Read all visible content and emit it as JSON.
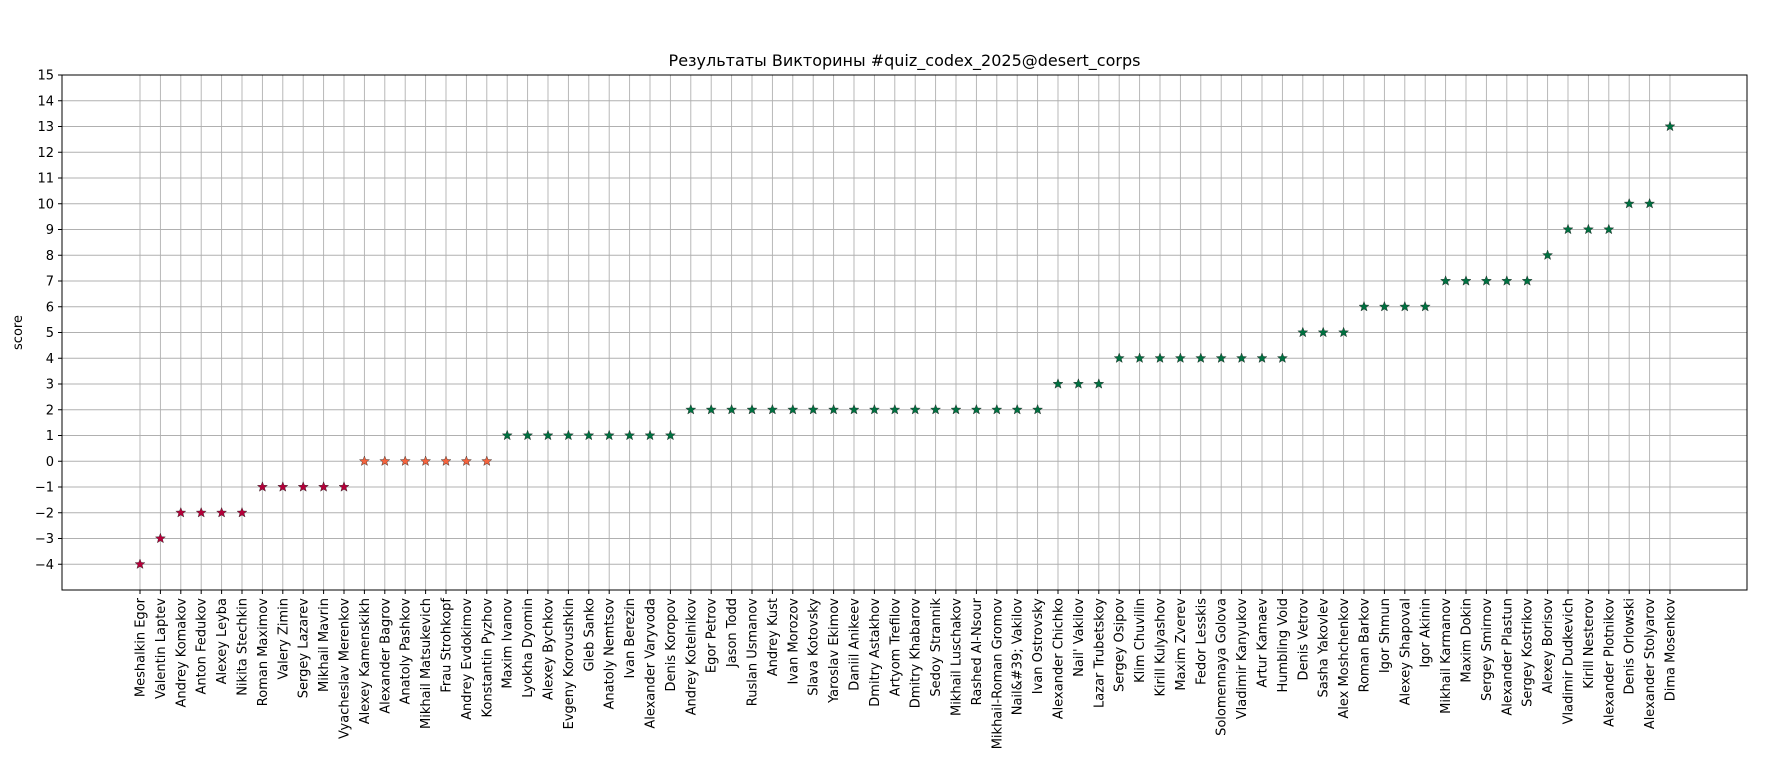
{
  "chart_data": {
    "type": "scatter",
    "marker": "star",
    "title": "Результаты Викторины #quiz_codex_2025@desert_corps",
    "xlabel": "",
    "ylabel": "score",
    "ylim": [
      -5,
      15
    ],
    "yticks": [
      -4,
      -3,
      -2,
      -1,
      0,
      1,
      2,
      3,
      4,
      5,
      6,
      7,
      8,
      9,
      10,
      11,
      12,
      13,
      14,
      15
    ],
    "grid": true,
    "colors": {
      "negative": "#b5003a",
      "zero": "#f4633d",
      "positive": "#007040"
    },
    "categories": [
      "Meshalkin Egor",
      "Valentin Laptev",
      "Andrey Komakov",
      "Anton Fedukov",
      "Alexey Leyba",
      "Nikita Stechkin",
      "Roman Maximov",
      "Valery Zimin",
      "Sergey Lazarev",
      "Mikhail Mavrin",
      "Vyacheslav Merenkov",
      "Alexey Kamenskikh",
      "Alexander Bagrov",
      "Anatoly Pashkov",
      "Mikhail Matsukevich",
      "Frau Strohkopf",
      "Andrey Evdokimov",
      "Konstantin Pyzhov",
      "Maxim Ivanov",
      "Lyokha Dyomin",
      "Alexey Bychkov",
      "Evgeny Korovushkin",
      "Gleb Sanko",
      "Anatoly Nemtsov",
      "Ivan Berezin",
      "Alexander Varyvoda",
      "Denis Koropov",
      "Andrey Kotelnikov",
      "Egor Petrov",
      "Jason Todd",
      "Ruslan Usmanov",
      "Andrey Kust",
      "Ivan Morozov",
      "Slava Kotovsky",
      "Yaroslav Ekimov",
      "Daniil Anikeev",
      "Dmitry Astakhov",
      "Artyom Trefilov",
      "Dmitry Khabarov",
      "Sedoy Strannik",
      "Mikhail Luschakov",
      "Rashed Al-Nsour",
      "Mikhail-Roman Gromov",
      "Nail&#39; Vakilov",
      "Ivan Ostrovsky",
      "Alexander Chichko",
      "Nail' Vakilov",
      "Lazar Trubetskoy",
      "Sergey Osipov",
      "Klim Chuvilin",
      "Kirill Kulyashov",
      "Maxim Zverev",
      "Fedor Lesskis",
      "Solomennaya Golova",
      "Vladimir Kanyukov",
      "Artur Kamaev",
      "Humbling Void",
      "Denis Vetrov",
      "Sasha Yakovlev",
      "Alex Moshchenkov",
      "Roman Barkov",
      "Igor Shmun",
      "Alexey Shapoval",
      "Igor Akinin",
      "Mikhail Karmanov",
      "Maxim Dokin",
      "Sergey Smirnov",
      "Alexander Plastun",
      "Sergey Kostrikov",
      "Alexey Borisov",
      "Vladimir Dudkevich",
      "Kirill Nesterov",
      "Alexander Plotnikov",
      "Denis Orlowski",
      "Alexander Stolyarov",
      "Dima Mosenkov"
    ],
    "values": [
      -4,
      -3,
      -2,
      -2,
      -2,
      -2,
      -1,
      -1,
      -1,
      -1,
      -1,
      0,
      0,
      0,
      0,
      0,
      0,
      0,
      1,
      1,
      1,
      1,
      1,
      1,
      1,
      1,
      1,
      2,
      2,
      2,
      2,
      2,
      2,
      2,
      2,
      2,
      2,
      2,
      2,
      2,
      2,
      2,
      2,
      2,
      2,
      3,
      3,
      3,
      4,
      4,
      4,
      4,
      4,
      4,
      4,
      4,
      4,
      5,
      5,
      5,
      6,
      6,
      6,
      6,
      7,
      7,
      7,
      7,
      7,
      8,
      9,
      9,
      9,
      10,
      10,
      13
    ]
  }
}
